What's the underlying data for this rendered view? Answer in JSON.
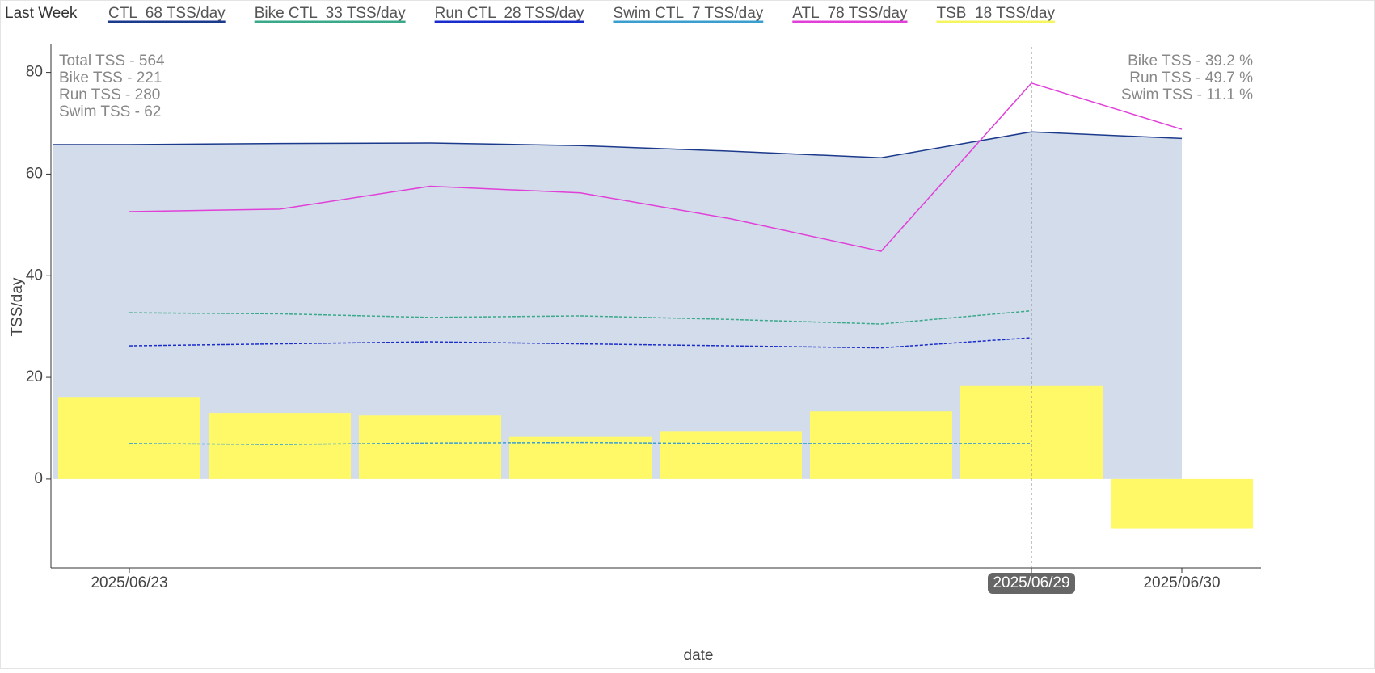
{
  "chart_data": {
    "type": "line",
    "legend_title": "Last Week",
    "legend": [
      "CTL  68 TSS/day",
      "Bike CTL  33 TSS/day",
      "Run CTL  28 TSS/day",
      "Swim CTL  7 TSS/day",
      "ATL  78 TSS/day",
      "TSB  18 TSS/day"
    ],
    "annotations_left": [
      "Total TSS - 564",
      "Bike TSS - 221",
      "Run TSS - 280",
      "Swim TSS - 62"
    ],
    "annotations_right": [
      "Bike TSS - 39.2 %",
      "Run TSS - 49.7 %",
      "Swim TSS - 11.1 %"
    ],
    "x_label": "date",
    "y_label": "TSS/day",
    "categories": [
      "2025/06/23",
      null,
      null,
      null,
      null,
      null,
      "2025/06/29",
      "2025/06/30"
    ],
    "highlight": "2025/06/29",
    "ylim": [
      -17.5,
      85.5
    ],
    "yticks": [
      0,
      20,
      40,
      60,
      80
    ],
    "series": [
      {
        "name": "CTL",
        "kind": "area",
        "color": "#1b3a8c",
        "fill": "#d3dcea",
        "values": [
          65.8,
          66.0,
          66.1,
          65.6,
          64.5,
          63.2,
          68.3,
          67.0
        ]
      },
      {
        "name": "TSB",
        "kind": "bar",
        "color": "#fff968",
        "values": [
          16.0,
          13.0,
          12.5,
          8.3,
          9.3,
          13.3,
          18.3,
          -9.8
        ]
      },
      {
        "name": "Swim CTL",
        "kind": "dash",
        "color": "#3a9fcf",
        "values": [
          7.0,
          6.8,
          7.1,
          7.2,
          7.0,
          7.0,
          7.0,
          null
        ]
      },
      {
        "name": "Bike CTL",
        "kind": "dash",
        "color": "#3aa88a",
        "values": [
          32.7,
          32.5,
          31.8,
          32.1,
          31.4,
          30.5,
          33.1,
          null
        ]
      },
      {
        "name": "Run CTL",
        "kind": "dash",
        "color": "#1a2ccc",
        "values": [
          26.2,
          26.6,
          27.0,
          26.6,
          26.2,
          25.8,
          27.8,
          null
        ]
      },
      {
        "name": "ATL",
        "kind": "line",
        "color": "#e040d8",
        "values": [
          52.6,
          53.1,
          57.6,
          56.3,
          51.2,
          44.8,
          77.9,
          68.8
        ]
      }
    ],
    "legend_colors": [
      "#1b3a8c",
      "#3aa88a",
      "#1a2ccc",
      "#3a9fcf",
      "#e040d8",
      "#f5f560"
    ]
  }
}
